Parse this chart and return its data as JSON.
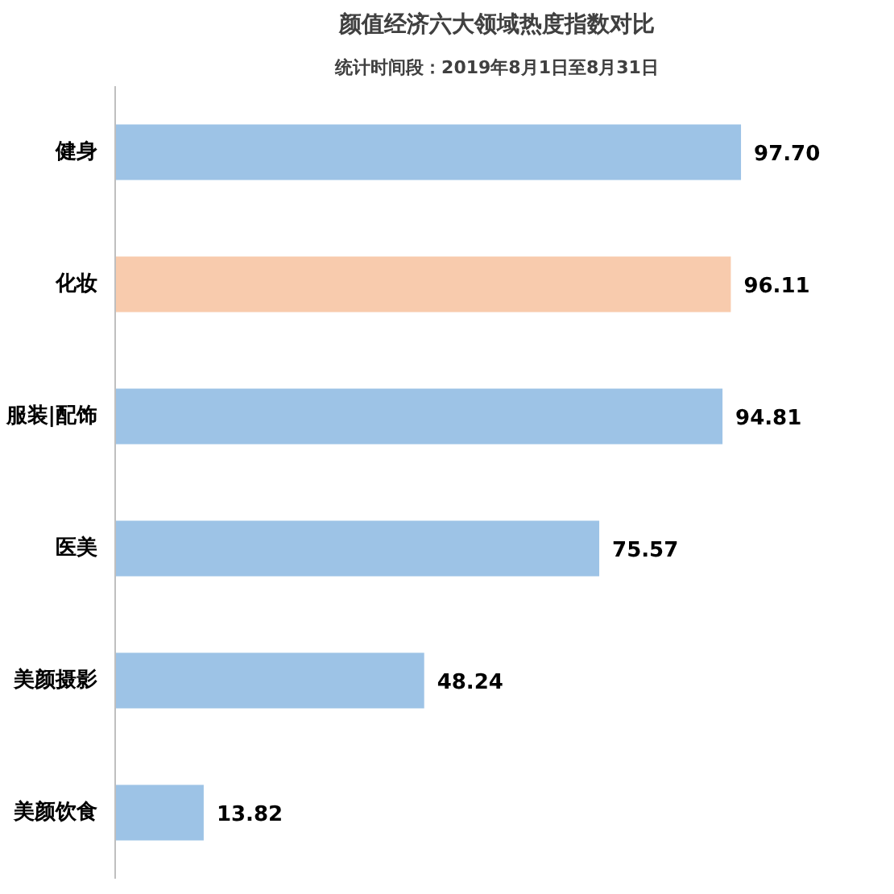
{
  "chart_data": {
    "type": "bar",
    "orientation": "horizontal",
    "title": "颜值经济六大领域热度指数对比",
    "subtitle": "统计时间段：2019年8月1日至8月31日",
    "categories": [
      "健身",
      "化妆",
      "服装|配饰",
      "医美",
      "美颜摄影",
      "美颜饮食"
    ],
    "values": [
      97.7,
      96.11,
      94.81,
      75.57,
      48.24,
      13.82
    ],
    "colors": [
      "#9dc3e6",
      "#f8cbad",
      "#9dc3e6",
      "#9dc3e6",
      "#9dc3e6",
      "#9dc3e6"
    ],
    "value_labels": [
      "97.70",
      "96.11",
      "94.81",
      "75.57",
      "48.24",
      "13.82"
    ],
    "grid": false,
    "tick_labels": "y"
  }
}
